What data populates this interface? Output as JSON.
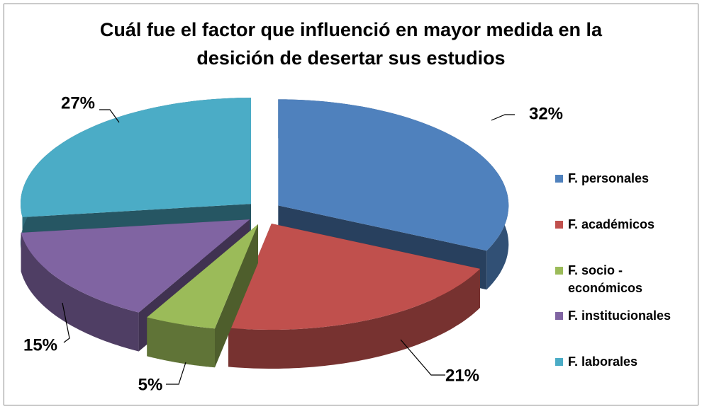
{
  "chart_data": {
    "type": "pie3d",
    "title": "Cuál fue el factor que influenció en mayor medida en la desición de desertar sus estudios",
    "categories": [
      "F. personales",
      "F. académicos",
      "F. socio - económicos",
      "F. institucionales",
      "F. laborales"
    ],
    "values": [
      32,
      21,
      5,
      15,
      27
    ],
    "value_labels": [
      "32%",
      "21%",
      "5%",
      "15%",
      "27%"
    ],
    "colors": [
      "#4f81bd",
      "#c0504d",
      "#9bbb59",
      "#8064a2",
      "#4bacc6"
    ],
    "legend": "right"
  }
}
